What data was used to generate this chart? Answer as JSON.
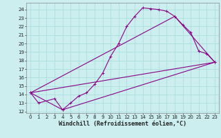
{
  "xlabel": "Windchill (Refroidissement éolien,°C)",
  "background_color": "#cceeee",
  "grid_color": "#aadddd",
  "line_color": "#880088",
  "xlim": [
    -0.5,
    23.5
  ],
  "ylim": [
    11.8,
    24.8
  ],
  "xticks": [
    0,
    1,
    2,
    3,
    4,
    5,
    6,
    7,
    8,
    9,
    10,
    11,
    12,
    13,
    14,
    15,
    16,
    17,
    18,
    19,
    20,
    21,
    22,
    23
  ],
  "yticks": [
    12,
    13,
    14,
    15,
    16,
    17,
    18,
    19,
    20,
    21,
    22,
    23,
    24
  ],
  "curve1_x": [
    0,
    1,
    3,
    4,
    5,
    6,
    7,
    8,
    9,
    10,
    11,
    12,
    13,
    14,
    15,
    16,
    17,
    18,
    19,
    20,
    21,
    22,
    23
  ],
  "curve1_y": [
    14.2,
    13.0,
    13.5,
    12.2,
    13.0,
    13.8,
    14.2,
    15.2,
    16.5,
    18.5,
    20.0,
    22.0,
    23.2,
    24.2,
    24.1,
    24.0,
    23.8,
    23.2,
    22.2,
    21.3,
    19.1,
    18.8,
    17.8
  ],
  "curve2_x": [
    0,
    23
  ],
  "curve2_y": [
    14.2,
    17.8
  ],
  "curve3_x": [
    0,
    4,
    23
  ],
  "curve3_y": [
    14.2,
    12.2,
    17.8
  ],
  "curve4_x": [
    0,
    18,
    23
  ],
  "curve4_y": [
    14.2,
    23.2,
    17.8
  ],
  "marker_style": "+",
  "tick_fontsize": 5,
  "xlabel_fontsize": 6,
  "lw": 0.8,
  "ms": 3
}
